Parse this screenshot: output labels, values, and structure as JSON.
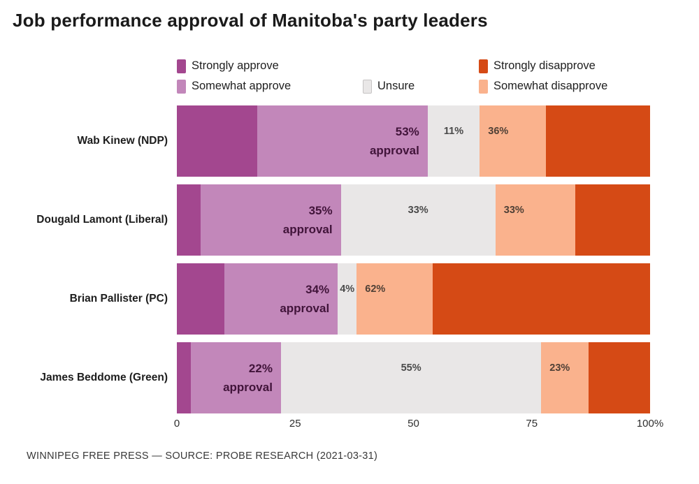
{
  "title": "Job performance approval of Manitoba's party leaders",
  "footer": "WINNIPEG FREE PRESS — SOURCE: PROBE RESEARCH (2021-03-31)",
  "colors": {
    "strongly_approve": "#a3478f",
    "somewhat_approve": "#c287ba",
    "unsure": "#e9e7e7",
    "somewhat_disapprove": "#fab28d",
    "strongly_disapprove": "#d54a15",
    "approval_label_text": "#41143a",
    "unsure_label_text": "#4a4a4a",
    "disapprove_label_text": "#4f4036"
  },
  "legend": {
    "strongly_approve": "Strongly approve",
    "somewhat_approve": "Somewhat approve",
    "unsure": "Unsure",
    "somewhat_disapprove": "Somewhat disapprove",
    "strongly_disapprove": "Strongly disapprove"
  },
  "chart_data": {
    "type": "bar",
    "orientation": "horizontal",
    "stacked": true,
    "title": "Job performance approval of Manitoba's party leaders",
    "legend_position": "top",
    "grid": false,
    "xlim": [
      0,
      100
    ],
    "categories": [
      "Wab Kinew (NDP)",
      "Dougald Lamont (Liberal)",
      "Brian Pallister (PC)",
      "James Beddome (Green)"
    ],
    "series": [
      {
        "name": "Strongly approve",
        "color_key": "strongly_approve",
        "values": [
          17,
          5,
          10,
          3
        ]
      },
      {
        "name": "Somewhat approve",
        "color_key": "somewhat_approve",
        "values": [
          36,
          30,
          24,
          19
        ]
      },
      {
        "name": "Unsure",
        "color_key": "unsure",
        "values": [
          11,
          33,
          4,
          55
        ]
      },
      {
        "name": "Somewhat disapprove",
        "color_key": "somewhat_disapprove",
        "values": [
          14,
          17,
          16,
          10
        ]
      },
      {
        "name": "Strongly disapprove",
        "color_key": "strongly_disapprove",
        "values": [
          22,
          16,
          46,
          13
        ]
      }
    ],
    "bar_labels": [
      {
        "approval": "53%",
        "approval_word": "approval",
        "unsure": "11%",
        "disapprove": "36%"
      },
      {
        "approval": "35%",
        "approval_word": "approval",
        "unsure": "33%",
        "disapprove": "33%"
      },
      {
        "approval": "34%",
        "approval_word": "approval",
        "unsure": "4%",
        "disapprove": "62%"
      },
      {
        "approval": "22%",
        "approval_word": "approval",
        "unsure": "55%",
        "disapprove": "23%"
      }
    ],
    "x_ticks": [
      {
        "value": 0,
        "label": "0"
      },
      {
        "value": 25,
        "label": "25"
      },
      {
        "value": 50,
        "label": "50"
      },
      {
        "value": 75,
        "label": "75"
      },
      {
        "value": 100,
        "label": "100%"
      }
    ]
  }
}
